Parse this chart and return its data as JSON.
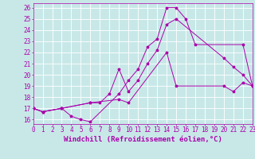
{
  "xlabel": "Windchill (Refroidissement éolien,°C)",
  "bg_color": "#c8e8e8",
  "line_color": "#aa00aa",
  "xmin": 0,
  "xmax": 23,
  "ymin": 15.6,
  "ymax": 26.4,
  "yticks": [
    16,
    17,
    18,
    19,
    20,
    21,
    22,
    23,
    24,
    25,
    26
  ],
  "xticks": [
    0,
    1,
    2,
    3,
    4,
    5,
    6,
    7,
    8,
    9,
    10,
    11,
    12,
    13,
    14,
    15,
    16,
    17,
    18,
    19,
    20,
    21,
    22,
    23
  ],
  "lines": [
    {
      "x": [
        0,
        1,
        3,
        4,
        5,
        6,
        9,
        10,
        11,
        12,
        13,
        14,
        15,
        16,
        17,
        22,
        23
      ],
      "y": [
        17,
        16.7,
        17,
        16.3,
        16.0,
        15.8,
        18.3,
        19.5,
        20.5,
        22.5,
        23.2,
        26.0,
        26.0,
        25.0,
        22.7,
        22.7,
        19.0
      ]
    },
    {
      "x": [
        0,
        1,
        3,
        6,
        7,
        8,
        9,
        10,
        11,
        12,
        13,
        14,
        15,
        20,
        21,
        22,
        23
      ],
      "y": [
        17,
        16.7,
        17,
        17.5,
        17.5,
        18.3,
        20.5,
        18.5,
        19.5,
        21.0,
        22.2,
        24.5,
        25.0,
        21.5,
        20.7,
        20.0,
        19.0
      ]
    },
    {
      "x": [
        0,
        1,
        3,
        6,
        9,
        10,
        14,
        15,
        20,
        21,
        22,
        23
      ],
      "y": [
        17,
        16.7,
        17,
        17.5,
        17.8,
        17.5,
        22.0,
        19.0,
        19.0,
        18.5,
        19.3,
        19.0
      ]
    }
  ],
  "grid_color": "#ffffff",
  "tick_label_fontsize": 5.5,
  "xlabel_fontsize": 6.5
}
